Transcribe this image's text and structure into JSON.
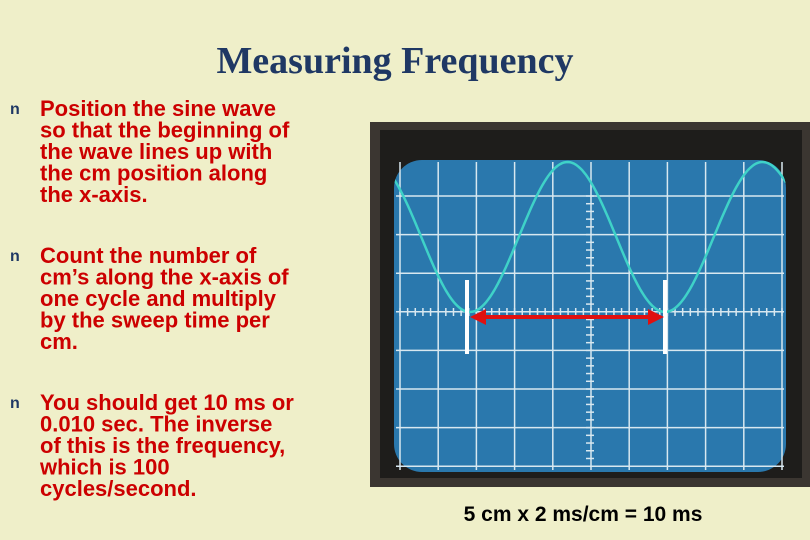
{
  "title": "Measuring Frequency",
  "bullets": [
    {
      "marker": "n",
      "lines": [
        "Position the sine wave",
        "so that the beginning of",
        "the wave lines up with",
        "the cm position along",
        "the x-axis."
      ]
    },
    {
      "marker": "n",
      "lines": [
        "Count the number of",
        "cm’s along the x-axis of",
        "one cycle and multiply",
        "by the sweep time per",
        "cm."
      ]
    },
    {
      "marker": "n",
      "lines": [
        "You should get 10 ms or",
        "0.010 sec.  The inverse",
        "of this is the frequency,",
        "which is 100",
        "cycles/second."
      ]
    }
  ],
  "caption": "5 cm x 2 ms/cm = 10 ms"
}
